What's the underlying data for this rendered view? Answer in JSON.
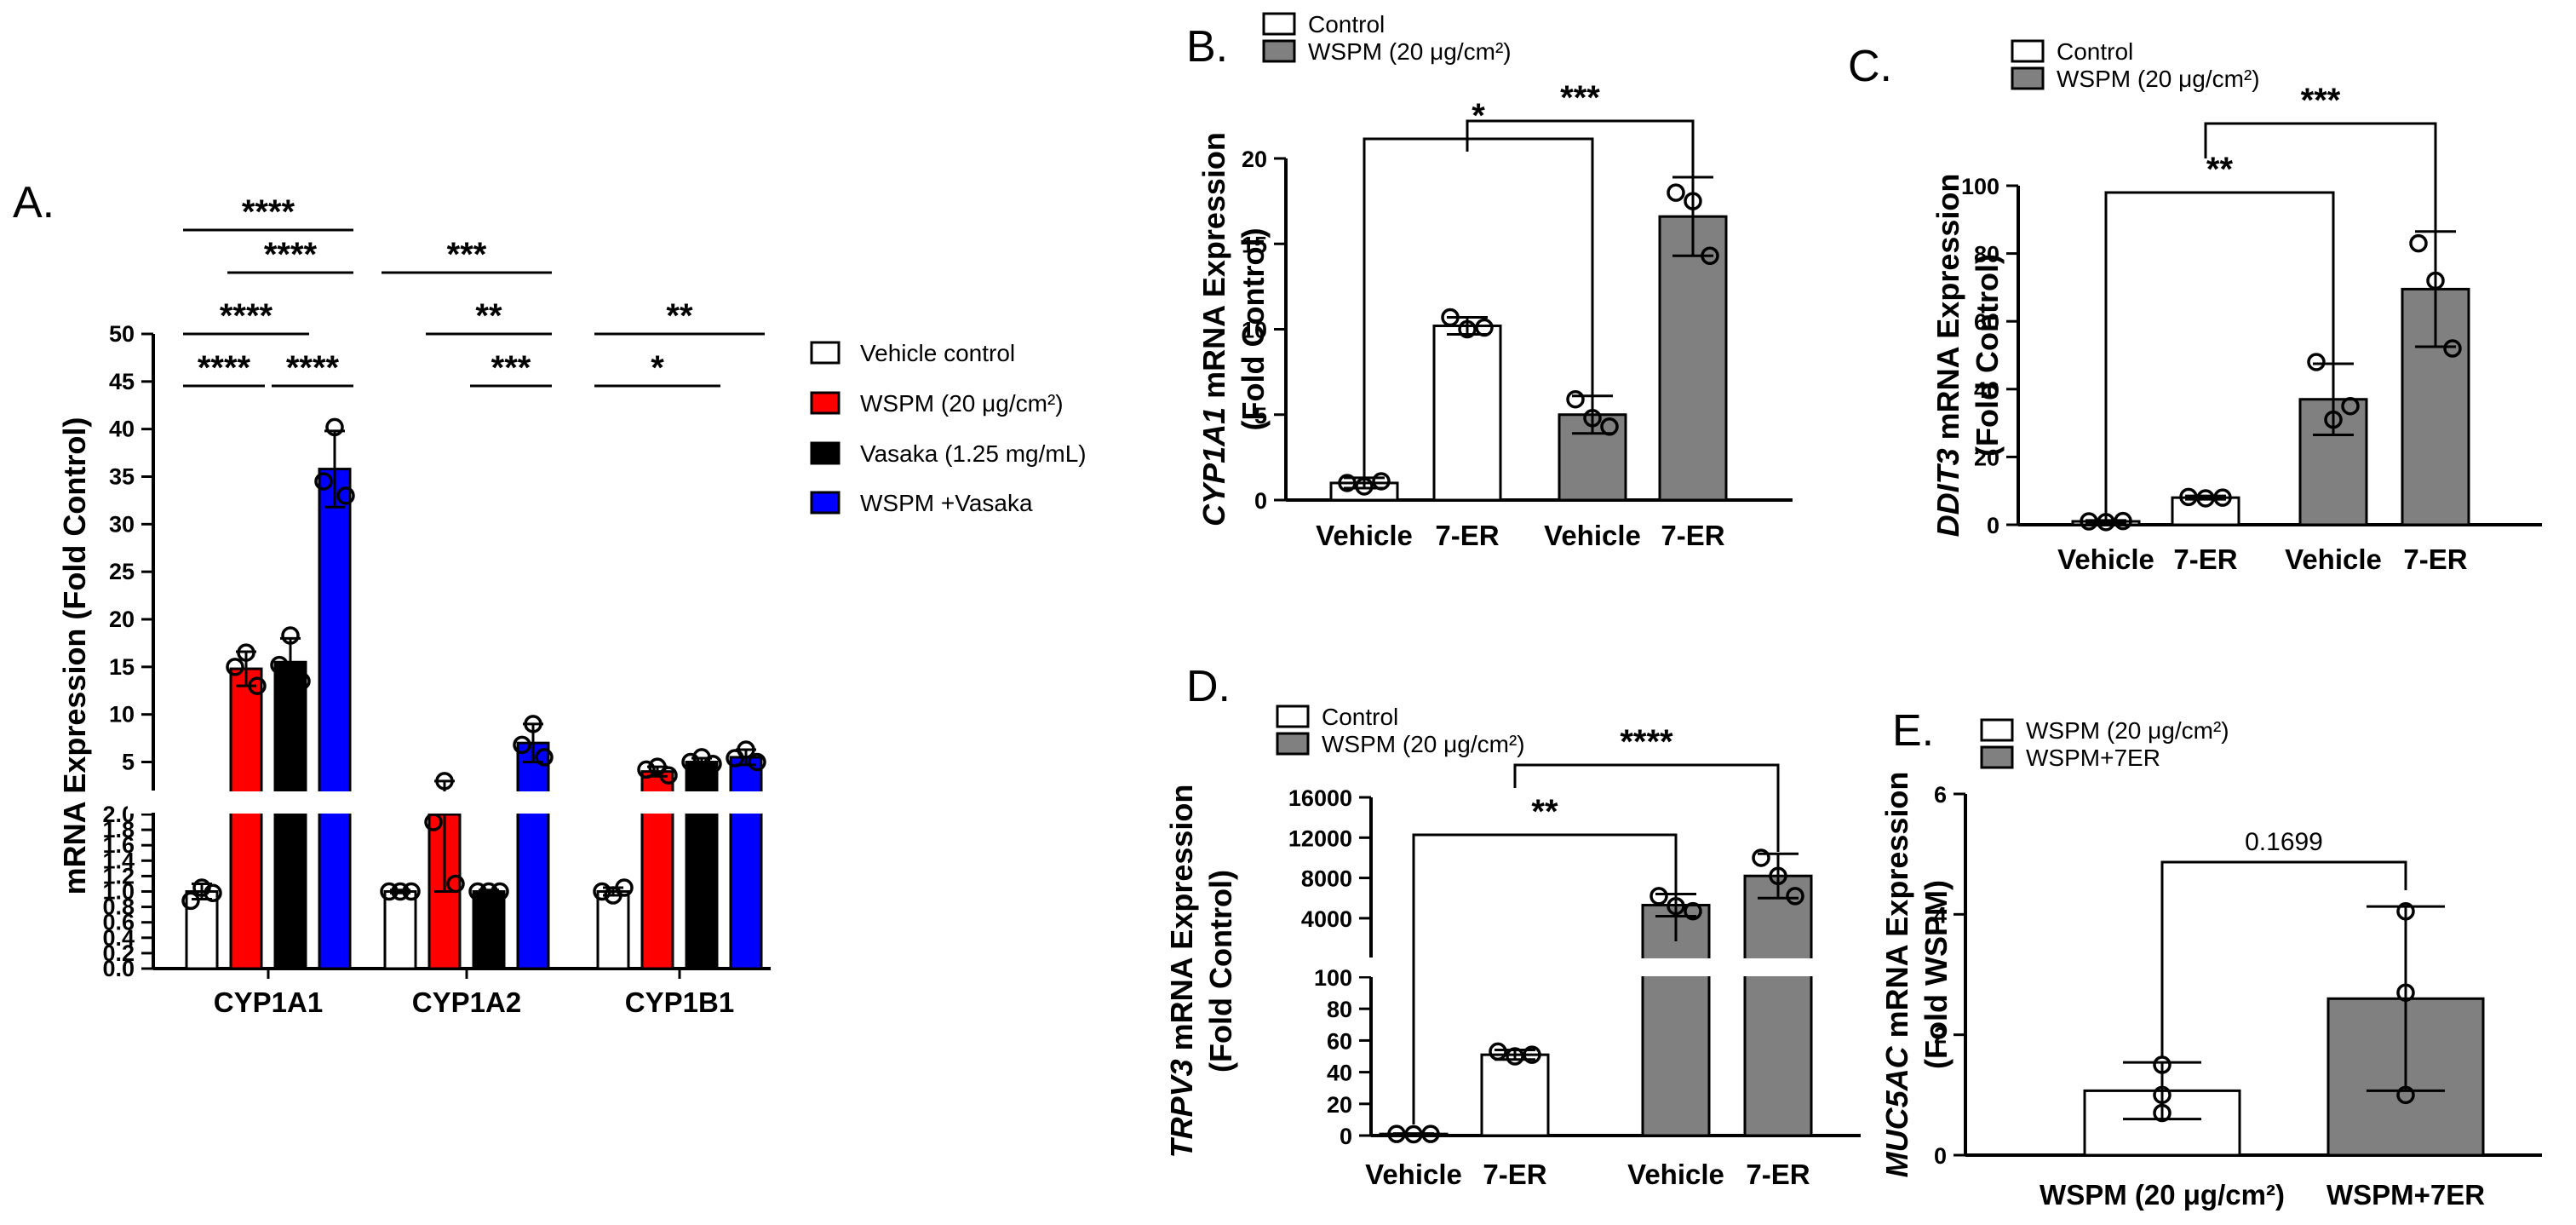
{
  "chart_data": [
    {
      "panel": "A.",
      "type": "bar",
      "ylabel": "mRNA Expression (Fold Control)",
      "categories": [
        "CYP1A1",
        "CYP1A2",
        "CYP1B1"
      ],
      "axis_break": {
        "lower_range": [
          0,
          2.0
        ],
        "upper_range": [
          2.0,
          50
        ]
      },
      "lower_ticks": [
        "0.0",
        "0.2",
        "0.4",
        "0.6",
        "0.8",
        "1.0",
        "1.2",
        "1.4",
        "1.6",
        "1.8",
        "2.0"
      ],
      "upper_ticks": [
        "5",
        "10",
        "15",
        "20",
        "25",
        "30",
        "35",
        "40",
        "45",
        "50"
      ],
      "series": [
        {
          "name": "Vehicle control",
          "color": "#ffffff",
          "values": [
            1.0,
            1.0,
            1.0
          ],
          "error": [
            0.1,
            0.02,
            0.05
          ],
          "points": [
            [
              1.05,
              0.88,
              0.98
            ],
            [
              1.0,
              1.0,
              1.0
            ],
            [
              0.95,
              1.0,
              1.05
            ]
          ]
        },
        {
          "name": "WSPM (20 μg/cm²)",
          "color": "#ff0000",
          "values": [
            14.8,
            2.0,
            4.0
          ],
          "error": [
            1.8,
            1.0,
            0.5
          ],
          "points": [
            [
              16.5,
              15.0,
              13.0
            ],
            [
              3.0,
              1.9,
              1.1
            ],
            [
              4.5,
              4.2,
              3.6
            ]
          ]
        },
        {
          "name": "Vasaka (1.25 mg/mL)",
          "color": "#000000",
          "values": [
            15.5,
            1.0,
            5.0
          ],
          "error": [
            2.5,
            0.02,
            0.4
          ],
          "points": [
            [
              18.3,
              15.2,
              13.5
            ],
            [
              1.0,
              1.0,
              1.0
            ],
            [
              5.5,
              5.0,
              4.8
            ]
          ]
        },
        {
          "name": "WSPM +Vasaka",
          "color": "#0000ff",
          "values": [
            35.8,
            7.0,
            5.5
          ],
          "error": [
            4.0,
            2.0,
            0.8
          ],
          "points": [
            [
              40.2,
              34.5,
              33.0
            ],
            [
              9.0,
              6.8,
              5.5
            ],
            [
              6.3,
              5.4,
              5.0
            ]
          ]
        }
      ],
      "significance": [
        {
          "label": "****",
          "category": "CYP1A1",
          "from": 0,
          "to": 3,
          "row": 1
        },
        {
          "label": "****",
          "category": "CYP1A1",
          "from": 1,
          "to": 3,
          "row": 2
        },
        {
          "label": "****",
          "category": "CYP1A1",
          "from": 0,
          "to": 2,
          "row": 3
        },
        {
          "label": "****",
          "category": "CYP1A1",
          "from": 0,
          "to": 1,
          "row": 4
        },
        {
          "label": "****",
          "category": "CYP1A1",
          "from": 2,
          "to": 3,
          "row": 4
        },
        {
          "label": "***",
          "category": "CYP1A2",
          "from": 0,
          "to": 3,
          "row": 2
        },
        {
          "label": "**",
          "category": "CYP1A2",
          "from": 1,
          "to": 3,
          "row": 3
        },
        {
          "label": "***",
          "category": "CYP1A2",
          "from": 2,
          "to": 3,
          "row": 4
        },
        {
          "label": "**",
          "category": "CYP1B1",
          "from": 0,
          "to": 3,
          "row": 3
        },
        {
          "label": "*",
          "category": "CYP1B1",
          "from": 0,
          "to": 2,
          "row": 4
        }
      ]
    },
    {
      "panel": "B.",
      "type": "bar",
      "ylabel_italic": "CYP1A1",
      "ylabel_rest": " mRNA Expression",
      "ylabel2": "(Fold Control)",
      "ylim": [
        0,
        20
      ],
      "yticks": [
        "0",
        "5",
        "10",
        "15",
        "20"
      ],
      "categories": [
        "Vehicle",
        "7-ER",
        "Vehicle",
        "7-ER"
      ],
      "legend": [
        "Control",
        "WSPM (20 μg/cm²)"
      ],
      "groups": [
        0,
        0,
        1,
        1
      ],
      "values": [
        1.0,
        10.2,
        5.0,
        16.6
      ],
      "error": [
        0.3,
        0.5,
        1.1,
        2.3
      ],
      "points": [
        [
          1.0,
          0.8,
          1.1
        ],
        [
          10.7,
          10.0,
          10.1
        ],
        [
          5.9,
          4.8,
          4.3
        ],
        [
          18.0,
          17.5,
          14.3
        ]
      ],
      "significance": [
        {
          "label": "*",
          "from": 0,
          "to": 2
        },
        {
          "label": "***",
          "from": 1,
          "to": 3
        }
      ]
    },
    {
      "panel": "C.",
      "type": "bar",
      "ylabel_italic": "DDIT3",
      "ylabel_rest": " mRNA Expression",
      "ylabel2": "(Fold Control)",
      "ylim": [
        0,
        100
      ],
      "yticks": [
        "0",
        "20",
        "40",
        "60",
        "80",
        "100"
      ],
      "categories": [
        "Vehicle",
        "7-ER",
        "Vehicle",
        "7-ER"
      ],
      "legend": [
        "Control",
        "WSPM (20 μg/cm²)"
      ],
      "groups": [
        0,
        0,
        1,
        1
      ],
      "values": [
        1.0,
        8.0,
        37.0,
        69.5
      ],
      "error": [
        0.3,
        0.5,
        10.5,
        17.0
      ],
      "points": [
        [
          1.0,
          0.8,
          1.1
        ],
        [
          8.2,
          7.8,
          8.0
        ],
        [
          48.0,
          31.0,
          35.0
        ],
        [
          83.0,
          72.0,
          52.0
        ]
      ],
      "significance": [
        {
          "label": "**",
          "from": 0,
          "to": 2
        },
        {
          "label": "***",
          "from": 1,
          "to": 3
        }
      ]
    },
    {
      "panel": "D.",
      "type": "bar",
      "ylabel_italic": "TRPV3",
      "ylabel_rest": " mRNA Expression",
      "ylabel2": "(Fold  Control)",
      "axis_break": {
        "lower_range": [
          0,
          100
        ],
        "upper_range": [
          100,
          16000
        ]
      },
      "lower_ticks": [
        "0",
        "20",
        "40",
        "60",
        "80",
        "100"
      ],
      "upper_ticks": [
        "4000",
        "8000",
        "12000",
        "16000"
      ],
      "categories": [
        "Vehicle",
        "7-ER",
        "Vehicle",
        "7-ER"
      ],
      "legend": [
        "Control",
        "WSPM (20 μg/cm²)"
      ],
      "groups": [
        0,
        0,
        1,
        1
      ],
      "values": [
        1.0,
        51.0,
        5300,
        8200
      ],
      "error": [
        0.3,
        3.0,
        1100,
        2200
      ],
      "points": [
        [
          1.0,
          0.8,
          1.0
        ],
        [
          53.0,
          50.0,
          51.0
        ],
        [
          6200,
          5200,
          4700
        ],
        [
          10000,
          8200,
          6200
        ]
      ],
      "significance": [
        {
          "label": "**",
          "from": 0,
          "to": 2
        },
        {
          "label": "****",
          "from": 1,
          "to": 3
        }
      ]
    },
    {
      "panel": "E.",
      "type": "bar",
      "ylabel_italic": "MUC5AC",
      "ylabel_rest": " mRNA Expression",
      "ylabel2": "(Fold WSPM)",
      "ylim": [
        0,
        6
      ],
      "yticks": [
        "0",
        "2",
        "4",
        "6"
      ],
      "categories": [
        "WSPM (20 μg/cm²)",
        "WSPM+7ER"
      ],
      "legend": [
        "WSPM (20 μg/cm²)",
        "WSPM+7ER"
      ],
      "groups": [
        0,
        1
      ],
      "values": [
        1.07,
        2.6
      ],
      "error": [
        0.47,
        1.53
      ],
      "points": [
        [
          1.5,
          1.0,
          0.7
        ],
        [
          4.05,
          2.7,
          1.0
        ]
      ],
      "significance": [
        {
          "label": "0.1699",
          "from": 0,
          "to": 1
        }
      ]
    }
  ]
}
